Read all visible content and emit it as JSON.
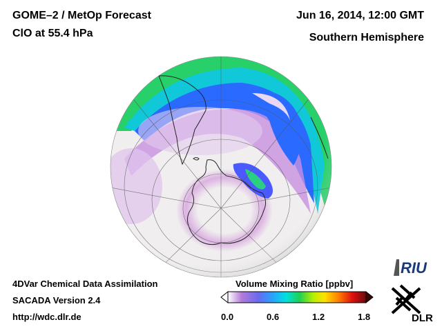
{
  "header": {
    "title": "GOME–2 / MetOp Forecast",
    "species": "ClO at 55.4 hPa",
    "datetime": "Jun 16, 2014, 12:00 GMT",
    "region": "Southern Hemisphere"
  },
  "footer": {
    "method": "4DVar Chemical Data Assimilation",
    "version": "SACADA Version 2.4",
    "url": "http://wdc.dlr.de"
  },
  "colorbar": {
    "title": "Volume Mixing Ratio [ppbv]",
    "ticks": [
      "0.0",
      "0.6",
      "1.2",
      "1.8"
    ],
    "range": [
      0.0,
      1.8
    ],
    "colors": [
      "#ffffff",
      "#b27ad8",
      "#6a6af0",
      "#2aa0ff",
      "#00e0e0",
      "#20d050",
      "#b8f000",
      "#ffe000",
      "#ff8000",
      "#e01010",
      "#6a0a0a"
    ]
  },
  "logos": {
    "riu": "RIU",
    "dlr": "DLR"
  },
  "map": {
    "projection": "orthographic",
    "background": "#f0eeee",
    "high_color": "#2a6aff",
    "max_color": "#30d050",
    "moderate_color": "#d8a8e0"
  }
}
